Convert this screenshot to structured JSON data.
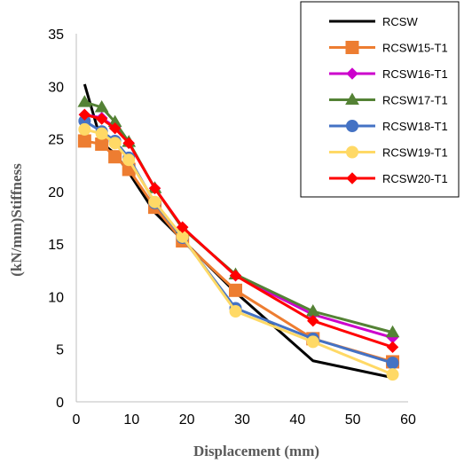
{
  "chart_data": {
    "type": "line",
    "title": "",
    "xlabel": "Displacement (mm)",
    "ylabel": "(kN/mm)Stiffness",
    "xlim": [
      0,
      60
    ],
    "ylim": [
      0,
      35
    ],
    "xticks": [
      0,
      10,
      20,
      30,
      40,
      50,
      60
    ],
    "yticks": [
      0,
      5,
      10,
      15,
      20,
      25,
      30,
      35
    ],
    "grid": false,
    "legend_position": "top-right",
    "series": [
      {
        "name": "RCSW",
        "color": "#000000",
        "marker": "none",
        "x": [
          1.5,
          4.6,
          7.0,
          9.5,
          14.2,
          19.2,
          28.8,
          42.8,
          57.2
        ],
        "y": [
          30.2,
          24.6,
          23.6,
          21.8,
          18.0,
          15.4,
          10.4,
          3.9,
          2.3
        ]
      },
      {
        "name": "RCSW15-T1",
        "color": "#ED7D31",
        "marker": "square",
        "x": [
          1.5,
          4.6,
          7.0,
          9.5,
          14.2,
          19.2,
          28.8,
          42.8,
          57.2
        ],
        "y": [
          24.8,
          24.5,
          23.3,
          22.1,
          18.5,
          15.3,
          10.6,
          6.0,
          3.8
        ]
      },
      {
        "name": "RCSW16-T1",
        "color": "#CC00CC",
        "marker": "diamond",
        "x": [
          1.5,
          4.6,
          7.0,
          9.5,
          14.2,
          19.2,
          28.8,
          42.8,
          57.2
        ],
        "y": [
          27.3,
          27.0,
          26.1,
          24.6,
          20.3,
          16.6,
          12.0,
          8.3,
          6.1
        ]
      },
      {
        "name": "RCSW17-T1",
        "color": "#548235",
        "marker": "triangle",
        "x": [
          1.5,
          4.6,
          7.0,
          9.5,
          14.2,
          19.2,
          28.8,
          42.8,
          57.2
        ],
        "y": [
          28.5,
          28.0,
          26.6,
          24.7,
          20.3,
          16.5,
          12.1,
          8.6,
          6.6
        ]
      },
      {
        "name": "RCSW18-T1",
        "color": "#4472C4",
        "marker": "circle",
        "x": [
          1.5,
          4.6,
          7.0,
          9.5,
          14.2,
          19.2,
          28.8,
          42.8,
          57.2
        ],
        "y": [
          26.7,
          25.7,
          24.8,
          23.2,
          18.9,
          15.6,
          8.9,
          6.0,
          3.7
        ]
      },
      {
        "name": "RCSW19-T1",
        "color": "#FFD966",
        "marker": "circle",
        "x": [
          1.5,
          4.6,
          7.0,
          9.5,
          14.2,
          19.2,
          28.8,
          42.8,
          57.2
        ],
        "y": [
          25.9,
          25.5,
          24.6,
          23.0,
          19.0,
          15.7,
          8.6,
          5.7,
          2.6
        ]
      },
      {
        "name": "RCSW20-T1",
        "color": "#FF0000",
        "marker": "diamond",
        "x": [
          1.5,
          4.6,
          7.0,
          9.5,
          14.2,
          19.2,
          28.8,
          42.8,
          57.2
        ],
        "y": [
          27.3,
          26.9,
          26.0,
          24.6,
          20.3,
          16.6,
          12.0,
          7.7,
          5.2
        ]
      }
    ]
  }
}
